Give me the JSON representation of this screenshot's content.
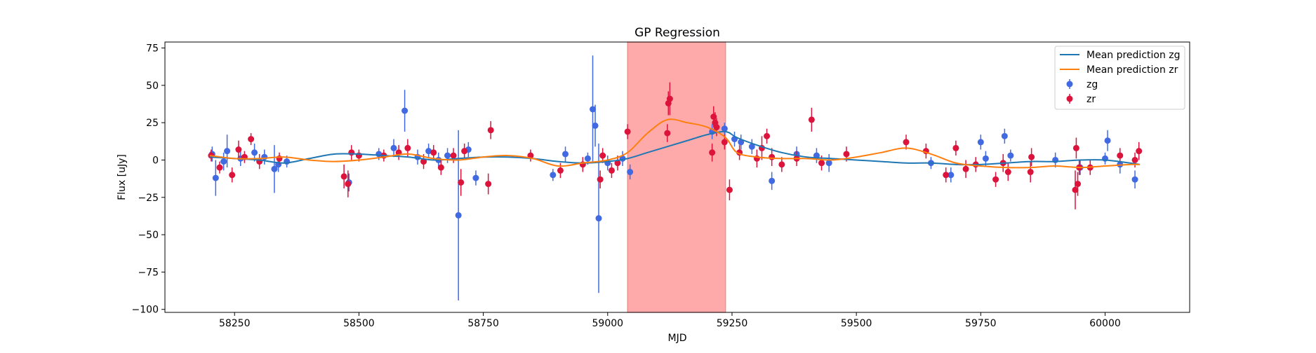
{
  "chart_data": {
    "type": "scatter",
    "title": "GP Regression",
    "xlabel": "MJD",
    "ylabel": "Flux [uJy]",
    "xlim": [
      58110,
      60170
    ],
    "ylim": [
      -102,
      79
    ],
    "xticks": [
      58250,
      58500,
      58750,
      59000,
      59250,
      59500,
      59750,
      60000
    ],
    "yticks": [
      -100,
      -75,
      -50,
      -25,
      0,
      25,
      50,
      75
    ],
    "xtick_labels": [
      "58250",
      "58500",
      "58750",
      "59000",
      "59250",
      "59500",
      "59750",
      "60000"
    ],
    "ytick_labels": [
      "−100",
      "−75",
      "−50",
      "−25",
      "0",
      "25",
      "50",
      "75"
    ],
    "grid": false,
    "legend_position": "top-right",
    "highlight_span": {
      "x": [
        59040,
        59237
      ],
      "color": "#ffaaaa"
    },
    "lines": [
      {
        "name": "Mean prediction zg",
        "color": "#1f77b4",
        "x": [
          58200,
          58250,
          58300,
          58350,
          58400,
          58450,
          58500,
          58550,
          58600,
          58650,
          58700,
          58750,
          58800,
          58850,
          58900,
          58950,
          59000,
          59040,
          59080,
          59120,
          59160,
          59200,
          59237,
          59260,
          59300,
          59350,
          59400,
          59450,
          59500,
          59550,
          59600,
          59650,
          59700,
          59750,
          59800,
          59850,
          59900,
          59950,
          60000,
          60050,
          60070
        ],
        "y": [
          2,
          1,
          0,
          -2,
          1,
          4,
          4,
          3,
          2,
          0,
          1,
          2,
          2,
          1,
          -1,
          -2,
          -1,
          1,
          5,
          9,
          13,
          17,
          19,
          15,
          10,
          5,
          2,
          1,
          0,
          -1,
          -2,
          -2,
          -3,
          -3,
          -2,
          -1,
          -1,
          0,
          0,
          -2,
          -3
        ]
      },
      {
        "name": "Mean prediction zr",
        "color": "#ff7f0e",
        "x": [
          58200,
          58250,
          58300,
          58350,
          58400,
          58450,
          58500,
          58550,
          58600,
          58650,
          58700,
          58750,
          58800,
          58850,
          58900,
          58950,
          59000,
          59040,
          59080,
          59120,
          59160,
          59200,
          59237,
          59260,
          59300,
          59350,
          59400,
          59450,
          59500,
          59550,
          59600,
          59650,
          59700,
          59750,
          59800,
          59850,
          59900,
          59950,
          60000,
          60050,
          60070
        ],
        "y": [
          3,
          1,
          1,
          2,
          0,
          -1,
          0,
          2,
          4,
          1,
          0,
          2,
          3,
          1,
          -4,
          -2,
          0,
          5,
          18,
          27,
          25,
          22,
          15,
          5,
          2,
          1,
          1,
          0,
          2,
          5,
          8,
          4,
          -2,
          -4,
          -5,
          -5,
          -4,
          -5,
          -4,
          -3,
          -3
        ]
      }
    ],
    "series": [
      {
        "name": "zg",
        "color": "#4169e1",
        "x": [
          58205,
          58212,
          58228,
          58235,
          58262,
          58290,
          58310,
          58330,
          58338,
          58355,
          58480,
          58540,
          58570,
          58592,
          58618,
          58640,
          58660,
          58678,
          58700,
          58720,
          58735,
          58890,
          58915,
          58960,
          58970,
          58975,
          58982,
          59000,
          59030,
          59045,
          59210,
          59235,
          59255,
          59268,
          59290,
          59330,
          59380,
          59420,
          59445,
          59650,
          59690,
          59750,
          59760,
          59798,
          59810,
          59900,
          59950,
          60000,
          60005,
          60030,
          60060
        ],
        "y": [
          4,
          -12,
          -1,
          6,
          1,
          5,
          2,
          -6,
          -3,
          -1,
          -15,
          4,
          8,
          33,
          2,
          6,
          0,
          3,
          -37,
          7,
          -12,
          -10,
          4,
          1,
          34,
          23,
          -39,
          -2,
          1,
          -8,
          19,
          21,
          14,
          12,
          9,
          -14,
          4,
          3,
          -2,
          -2,
          -10,
          12,
          1,
          16,
          3,
          0,
          -5,
          1,
          13,
          -3,
          -13
        ],
        "err": [
          5,
          12,
          6,
          11,
          5,
          6,
          5,
          16,
          5,
          4,
          6,
          4,
          6,
          14,
          5,
          5,
          5,
          5,
          57,
          5,
          5,
          4,
          5,
          4,
          36,
          14,
          50,
          5,
          5,
          5,
          5,
          4,
          5,
          5,
          5,
          6,
          5,
          5,
          6,
          4,
          5,
          5,
          5,
          5,
          4,
          5,
          5,
          4,
          7,
          6,
          6
        ]
      },
      {
        "name": "zr",
        "color": "#dc143c",
        "x": [
          58203,
          58220,
          58245,
          58258,
          58270,
          58283,
          58300,
          58340,
          58470,
          58478,
          58485,
          58500,
          58550,
          58580,
          58598,
          58630,
          58650,
          58665,
          58690,
          58705,
          58712,
          58760,
          58765,
          58845,
          58905,
          58950,
          58985,
          58990,
          59008,
          59020,
          59040,
          59120,
          59122,
          59125,
          59210,
          59213,
          59216,
          59219,
          59235,
          59245,
          59265,
          59300,
          59310,
          59320,
          59330,
          59350,
          59380,
          59410,
          59430,
          59480,
          59600,
          59640,
          59680,
          59700,
          59720,
          59740,
          59780,
          59795,
          59805,
          59850,
          59852,
          59940,
          59942,
          59945,
          59948,
          59970,
          60030,
          60060,
          60068
        ],
        "y": [
          3,
          -5,
          -10,
          7,
          2,
          14,
          -1,
          1,
          -11,
          -16,
          5,
          3,
          3,
          5,
          8,
          -1,
          5,
          -5,
          3,
          -15,
          6,
          -16,
          20,
          3,
          -7,
          -3,
          -13,
          3,
          -7,
          -2,
          19,
          18,
          38,
          41,
          5,
          29,
          25,
          22,
          12,
          -20,
          5,
          1,
          8,
          16,
          2,
          -3,
          1,
          27,
          -2,
          4,
          12,
          6,
          -10,
          8,
          -6,
          -3,
          -13,
          -2,
          -8,
          -8,
          2,
          -20,
          8,
          -16,
          -5,
          -5,
          3,
          0,
          6
        ],
        "err": [
          4,
          4,
          5,
          6,
          4,
          4,
          5,
          4,
          8,
          9,
          5,
          4,
          4,
          5,
          6,
          5,
          5,
          5,
          5,
          9,
          5,
          7,
          6,
          4,
          5,
          5,
          6,
          5,
          5,
          5,
          5,
          6,
          8,
          11,
          6,
          7,
          7,
          6,
          5,
          7,
          5,
          6,
          8,
          5,
          6,
          5,
          5,
          8,
          5,
          5,
          5,
          5,
          5,
          5,
          6,
          5,
          5,
          6,
          6,
          7,
          6,
          13,
          7,
          8,
          5,
          5,
          5,
          5,
          6
        ]
      }
    ]
  }
}
